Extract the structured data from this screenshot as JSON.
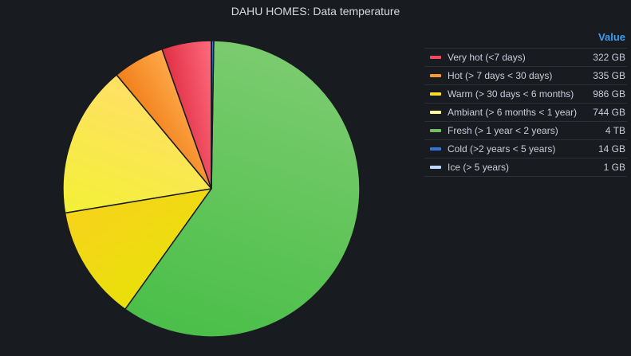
{
  "panel": {
    "title": "DAHU HOMES: Data temperature"
  },
  "legend": {
    "header": "Value"
  },
  "chart_data": {
    "type": "pie",
    "title": "DAHU HOMES: Data temperature",
    "unit": "GB",
    "series": [
      {
        "name": "Very hot (<7 days)",
        "value": 322,
        "display": "322 GB",
        "color": "#f2495c",
        "slice_start": "#ff6b7e",
        "slice_end": "#e02f44"
      },
      {
        "name": "Hot (> 7 days < 30 days)",
        "value": 335,
        "display": "335 GB",
        "color": "#ff9830",
        "slice_start": "#ffa94a",
        "slice_end": "#f07f1a"
      },
      {
        "name": "Warm (> 30 days < 6 months)",
        "value": 986,
        "display": "986 GB",
        "color": "#fade2a",
        "slice_start": "#ffe066",
        "slice_end": "#f3f036"
      },
      {
        "name": "Ambiant (> 6 months < 1 year)",
        "value": 744,
        "display": "744 GB",
        "color": "#fff899",
        "slice_start": "#f7d31c",
        "slice_end": "#e9e00a"
      },
      {
        "name": "Fresh (> 1 year < 2 years)",
        "value": 3546,
        "display": "4 TB",
        "color": "#73bf69",
        "slice_start": "#4bbf49",
        "slice_end": "#7acb6e"
      },
      {
        "name": "Cold (>2 years < 5 years)",
        "value": 14,
        "display": "14 GB",
        "color": "#3274d9",
        "slice_start": "#3274d9",
        "slice_end": "#3274d9"
      },
      {
        "name": "Ice (> 5 years)",
        "value": 1,
        "display": "1 GB",
        "color": "#c0d8ff",
        "slice_start": "#c0d8ff",
        "slice_end": "#c0d8ff"
      }
    ]
  }
}
